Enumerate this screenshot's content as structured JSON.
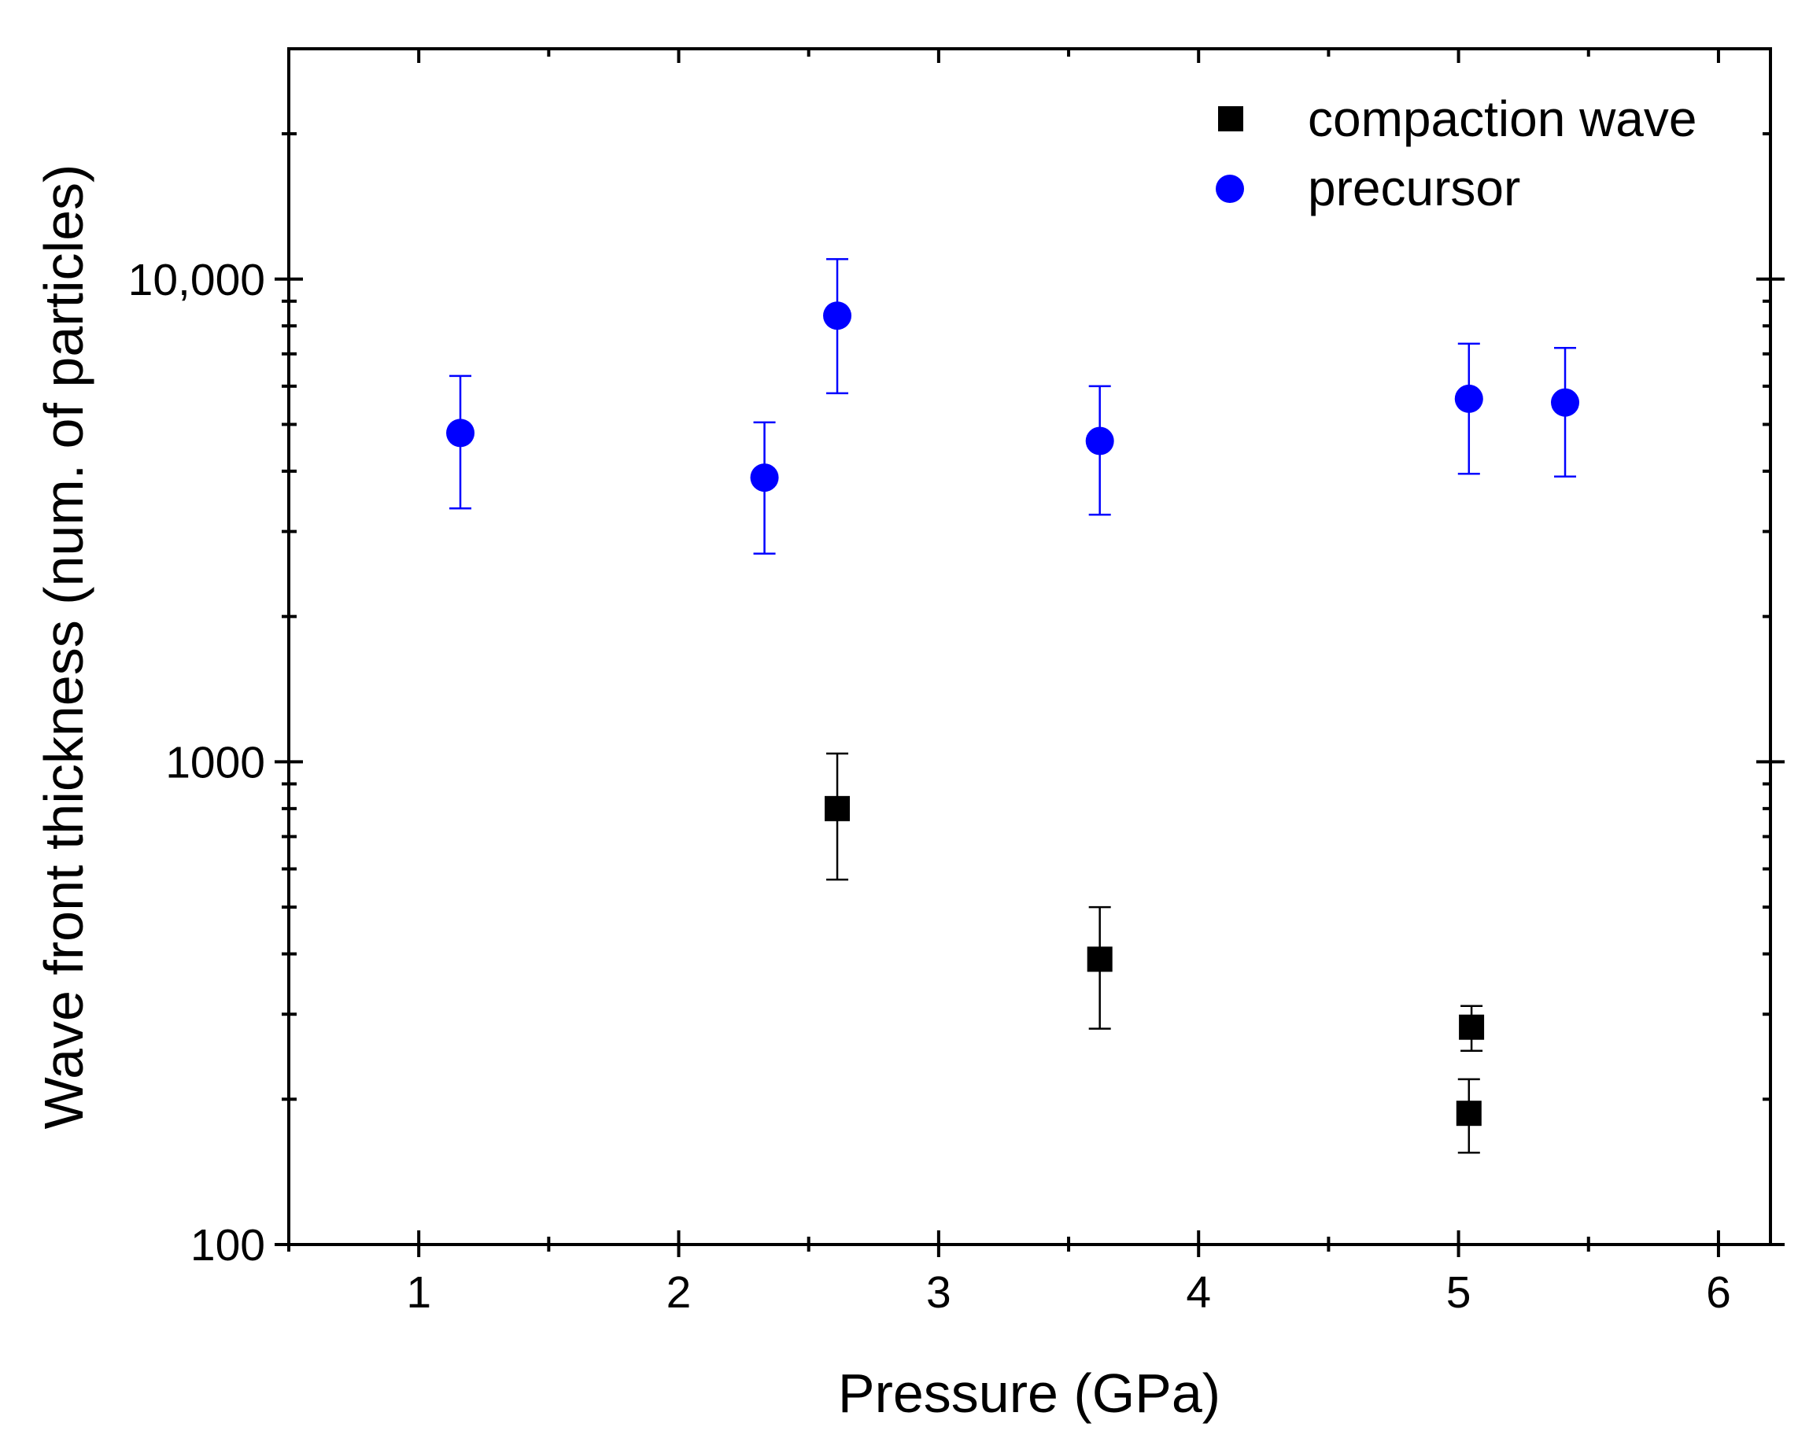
{
  "chart_data": {
    "type": "scatter",
    "title": "",
    "xlabel": "Pressure (GPa)",
    "ylabel": "Wave front thickness (num. of particles)",
    "xlim": [
      0.5,
      6.2
    ],
    "ylim": [
      100,
      30000
    ],
    "yscale": "log",
    "grid": false,
    "legend_position": "top-right",
    "x_ticks": [
      1,
      2,
      3,
      4,
      5,
      6
    ],
    "x_tick_labels": [
      "1",
      "2",
      "3",
      "4",
      "5",
      "6"
    ],
    "y_ticks": [
      100,
      1000,
      10000
    ],
    "y_tick_labels": [
      "100",
      "1000",
      "10,000"
    ],
    "series": [
      {
        "name": "compaction wave",
        "marker": "square",
        "color": "#000000",
        "points": [
          {
            "x": 2.61,
            "y": 800,
            "err_low": 570,
            "err_high": 1040
          },
          {
            "x": 3.62,
            "y": 390,
            "err_low": 280,
            "err_high": 500
          },
          {
            "x": 5.05,
            "y": 282,
            "err_low": 252,
            "err_high": 312
          },
          {
            "x": 5.04,
            "y": 187,
            "err_low": 155,
            "err_high": 220
          }
        ]
      },
      {
        "name": "precursor",
        "marker": "circle",
        "color": "#0000ff",
        "points": [
          {
            "x": 1.16,
            "y": 4800,
            "err_low": 3350,
            "err_high": 6300
          },
          {
            "x": 2.33,
            "y": 3880,
            "err_low": 2700,
            "err_high": 5050
          },
          {
            "x": 2.61,
            "y": 8400,
            "err_low": 5800,
            "err_high": 11000
          },
          {
            "x": 3.62,
            "y": 4620,
            "err_low": 3250,
            "err_high": 6000
          },
          {
            "x": 5.04,
            "y": 5650,
            "err_low": 3950,
            "err_high": 7350
          },
          {
            "x": 5.41,
            "y": 5550,
            "err_low": 3900,
            "err_high": 7200
          }
        ]
      }
    ]
  }
}
